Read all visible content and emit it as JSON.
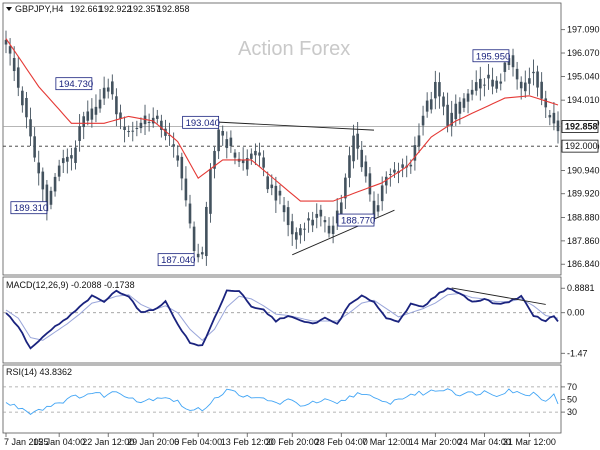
{
  "chart_data": [
    {
      "type": "candlestick",
      "panel": "price",
      "title": "GBPJPY,H4",
      "ohlc_header": [
        "192.661",
        "192.922",
        "192.357",
        "192.858"
      ],
      "watermark": "Action Forex",
      "ylim": [
        186.5,
        197.6
      ],
      "y_ticks": [
        "197.090",
        "196.070",
        "195.040",
        "194.010",
        "192.980",
        "191.960",
        "190.940",
        "189.920",
        "188.880",
        "187.860",
        "186.840"
      ],
      "current_price": {
        "value": 192.858,
        "label": "192.858"
      },
      "support_level": {
        "value": 192.0,
        "label": "192.000"
      },
      "annotations": [
        {
          "text": "194.730",
          "x": 21,
          "y": 194.73,
          "anchor": "left"
        },
        {
          "text": "189.310",
          "x": 10,
          "y": 189.31,
          "anchor": "right"
        },
        {
          "text": "193.040",
          "x": 52,
          "y": 193.04,
          "anchor": "right"
        },
        {
          "text": "187.040",
          "x": 46,
          "y": 187.04,
          "anchor": "right"
        },
        {
          "text": "188.770",
          "x": 90,
          "y": 188.77,
          "anchor": "right"
        },
        {
          "text": "195.950",
          "x": 123,
          "y": 195.95,
          "anchor": "right"
        }
      ],
      "trendlines": [
        {
          "x": [
            52,
            90
          ],
          "y": [
            193.05,
            192.7
          ]
        },
        {
          "x": [
            70,
            95
          ],
          "y": [
            187.25,
            189.2
          ]
        }
      ],
      "anchors": [
        {
          "x": 0,
          "y": 196.6
        },
        {
          "x": 4,
          "y": 193.9
        },
        {
          "x": 7,
          "y": 191.5
        },
        {
          "x": 10,
          "y": 189.4
        },
        {
          "x": 13,
          "y": 191.2
        },
        {
          "x": 16,
          "y": 191.5
        },
        {
          "x": 19,
          "y": 193.2
        },
        {
          "x": 22,
          "y": 193.6
        },
        {
          "x": 25,
          "y": 194.7
        },
        {
          "x": 28,
          "y": 193.0
        },
        {
          "x": 31,
          "y": 192.6
        },
        {
          "x": 34,
          "y": 193.3
        },
        {
          "x": 37,
          "y": 193.1
        },
        {
          "x": 40,
          "y": 192.3
        },
        {
          "x": 43,
          "y": 190.8
        },
        {
          "x": 46,
          "y": 187.3
        },
        {
          "x": 48,
          "y": 187.4
        },
        {
          "x": 50,
          "y": 190.8
        },
        {
          "x": 52,
          "y": 192.8
        },
        {
          "x": 55,
          "y": 191.8
        },
        {
          "x": 58,
          "y": 191.2
        },
        {
          "x": 61,
          "y": 191.9
        },
        {
          "x": 64,
          "y": 190.3
        },
        {
          "x": 67,
          "y": 189.6
        },
        {
          "x": 70,
          "y": 188.1
        },
        {
          "x": 73,
          "y": 188.6
        },
        {
          "x": 76,
          "y": 189.0
        },
        {
          "x": 79,
          "y": 188.3
        },
        {
          "x": 82,
          "y": 189.6
        },
        {
          "x": 85,
          "y": 192.4
        },
        {
          "x": 88,
          "y": 190.7
        },
        {
          "x": 90,
          "y": 189.0
        },
        {
          "x": 93,
          "y": 190.6
        },
        {
          "x": 96,
          "y": 190.9
        },
        {
          "x": 99,
          "y": 191.3
        },
        {
          "x": 102,
          "y": 193.4
        },
        {
          "x": 105,
          "y": 194.6
        },
        {
          "x": 108,
          "y": 193.1
        },
        {
          "x": 111,
          "y": 193.9
        },
        {
          "x": 114,
          "y": 194.4
        },
        {
          "x": 117,
          "y": 194.9
        },
        {
          "x": 120,
          "y": 194.6
        },
        {
          "x": 123,
          "y": 195.8
        },
        {
          "x": 126,
          "y": 194.4
        },
        {
          "x": 129,
          "y": 195.4
        },
        {
          "x": 132,
          "y": 193.5
        },
        {
          "x": 135,
          "y": 192.9
        }
      ],
      "ma_anchors": [
        {
          "x": 0,
          "y": 196.7
        },
        {
          "x": 8,
          "y": 194.6
        },
        {
          "x": 16,
          "y": 193.0
        },
        {
          "x": 24,
          "y": 193.0
        },
        {
          "x": 30,
          "y": 193.3
        },
        {
          "x": 36,
          "y": 193.1
        },
        {
          "x": 42,
          "y": 192.2
        },
        {
          "x": 47,
          "y": 190.6
        },
        {
          "x": 53,
          "y": 191.4
        },
        {
          "x": 60,
          "y": 191.4
        },
        {
          "x": 66,
          "y": 190.5
        },
        {
          "x": 72,
          "y": 189.6
        },
        {
          "x": 80,
          "y": 189.6
        },
        {
          "x": 86,
          "y": 190.0
        },
        {
          "x": 92,
          "y": 190.4
        },
        {
          "x": 98,
          "y": 191.1
        },
        {
          "x": 104,
          "y": 192.4
        },
        {
          "x": 110,
          "y": 193.1
        },
        {
          "x": 116,
          "y": 193.6
        },
        {
          "x": 122,
          "y": 194.1
        },
        {
          "x": 128,
          "y": 194.2
        },
        {
          "x": 135,
          "y": 193.8
        }
      ]
    },
    {
      "type": "line",
      "panel": "macd",
      "title": "MACD(12,26,9) -0.2088 -0.1738",
      "ylim": [
        -1.75,
        1.15
      ],
      "y_ticks": [
        "0.8881",
        "0.00",
        "-1.47"
      ],
      "zero_line": 0,
      "trendline": {
        "x": [
          109,
          132
        ],
        "y": [
          0.9,
          0.3
        ]
      },
      "series": [
        {
          "role": "main",
          "anchors": [
            {
              "x": 0,
              "y": 0.0
            },
            {
              "x": 3,
              "y": -0.5
            },
            {
              "x": 6,
              "y": -1.3
            },
            {
              "x": 9,
              "y": -0.9
            },
            {
              "x": 12,
              "y": -0.5
            },
            {
              "x": 15,
              "y": -0.2
            },
            {
              "x": 18,
              "y": 0.2
            },
            {
              "x": 21,
              "y": 0.6
            },
            {
              "x": 24,
              "y": 0.4
            },
            {
              "x": 27,
              "y": 0.8
            },
            {
              "x": 30,
              "y": 0.6
            },
            {
              "x": 33,
              "y": 0.0
            },
            {
              "x": 36,
              "y": 0.1
            },
            {
              "x": 39,
              "y": 0.4
            },
            {
              "x": 42,
              "y": -0.4
            },
            {
              "x": 45,
              "y": -1.1
            },
            {
              "x": 48,
              "y": -1.2
            },
            {
              "x": 51,
              "y": -0.2
            },
            {
              "x": 54,
              "y": 0.8
            },
            {
              "x": 57,
              "y": 0.8
            },
            {
              "x": 60,
              "y": 0.2
            },
            {
              "x": 63,
              "y": 0.1
            },
            {
              "x": 66,
              "y": -0.3
            },
            {
              "x": 69,
              "y": -0.1
            },
            {
              "x": 72,
              "y": -0.3
            },
            {
              "x": 75,
              "y": -0.4
            },
            {
              "x": 78,
              "y": -0.2
            },
            {
              "x": 81,
              "y": -0.4
            },
            {
              "x": 84,
              "y": 0.3
            },
            {
              "x": 87,
              "y": 0.6
            },
            {
              "x": 90,
              "y": 0.4
            },
            {
              "x": 93,
              "y": -0.2
            },
            {
              "x": 96,
              "y": -0.3
            },
            {
              "x": 99,
              "y": 0.3
            },
            {
              "x": 102,
              "y": 0.2
            },
            {
              "x": 105,
              "y": 0.6
            },
            {
              "x": 108,
              "y": 0.9
            },
            {
              "x": 111,
              "y": 0.7
            },
            {
              "x": 114,
              "y": 0.4
            },
            {
              "x": 117,
              "y": 0.5
            },
            {
              "x": 120,
              "y": 0.3
            },
            {
              "x": 123,
              "y": 0.4
            },
            {
              "x": 126,
              "y": 0.6
            },
            {
              "x": 129,
              "y": -0.1
            },
            {
              "x": 132,
              "y": -0.3
            },
            {
              "x": 134,
              "y": -0.1
            },
            {
              "x": 135,
              "y": -0.3
            }
          ]
        },
        {
          "role": "signal",
          "anchors": [
            {
              "x": 0,
              "y": 0.1
            },
            {
              "x": 3,
              "y": -0.2
            },
            {
              "x": 6,
              "y": -0.9
            },
            {
              "x": 9,
              "y": -1.0
            },
            {
              "x": 12,
              "y": -0.7
            },
            {
              "x": 15,
              "y": -0.4
            },
            {
              "x": 18,
              "y": -0.05
            },
            {
              "x": 21,
              "y": 0.35
            },
            {
              "x": 24,
              "y": 0.45
            },
            {
              "x": 27,
              "y": 0.6
            },
            {
              "x": 30,
              "y": 0.65
            },
            {
              "x": 33,
              "y": 0.3
            },
            {
              "x": 36,
              "y": 0.1
            },
            {
              "x": 39,
              "y": 0.25
            },
            {
              "x": 42,
              "y": 0.0
            },
            {
              "x": 45,
              "y": -0.6
            },
            {
              "x": 48,
              "y": -1.0
            },
            {
              "x": 51,
              "y": -0.6
            },
            {
              "x": 54,
              "y": 0.2
            },
            {
              "x": 57,
              "y": 0.6
            },
            {
              "x": 60,
              "y": 0.5
            },
            {
              "x": 63,
              "y": 0.25
            },
            {
              "x": 66,
              "y": -0.05
            },
            {
              "x": 69,
              "y": -0.1
            },
            {
              "x": 72,
              "y": -0.2
            },
            {
              "x": 75,
              "y": -0.3
            },
            {
              "x": 78,
              "y": -0.3
            },
            {
              "x": 81,
              "y": -0.3
            },
            {
              "x": 84,
              "y": 0.0
            },
            {
              "x": 87,
              "y": 0.35
            },
            {
              "x": 90,
              "y": 0.45
            },
            {
              "x": 93,
              "y": 0.15
            },
            {
              "x": 96,
              "y": -0.15
            },
            {
              "x": 99,
              "y": 0.0
            },
            {
              "x": 102,
              "y": 0.15
            },
            {
              "x": 105,
              "y": 0.35
            },
            {
              "x": 108,
              "y": 0.65
            },
            {
              "x": 111,
              "y": 0.7
            },
            {
              "x": 114,
              "y": 0.55
            },
            {
              "x": 117,
              "y": 0.5
            },
            {
              "x": 120,
              "y": 0.4
            },
            {
              "x": 123,
              "y": 0.4
            },
            {
              "x": 126,
              "y": 0.5
            },
            {
              "x": 129,
              "y": 0.25
            },
            {
              "x": 132,
              "y": -0.1
            },
            {
              "x": 135,
              "y": -0.2
            }
          ]
        }
      ]
    },
    {
      "type": "line",
      "panel": "rsi",
      "title": "RSI(14) 43.8362",
      "ylim": [
        0,
        100
      ],
      "y_ticks": [
        "70",
        "50",
        "30"
      ],
      "levels": [
        70,
        30
      ],
      "anchors": [
        {
          "x": 0,
          "y": 44
        },
        {
          "x": 3,
          "y": 38
        },
        {
          "x": 6,
          "y": 30
        },
        {
          "x": 9,
          "y": 36
        },
        {
          "x": 12,
          "y": 44
        },
        {
          "x": 15,
          "y": 50
        },
        {
          "x": 18,
          "y": 56
        },
        {
          "x": 21,
          "y": 60
        },
        {
          "x": 24,
          "y": 57
        },
        {
          "x": 27,
          "y": 62
        },
        {
          "x": 30,
          "y": 56
        },
        {
          "x": 33,
          "y": 46
        },
        {
          "x": 36,
          "y": 52
        },
        {
          "x": 39,
          "y": 55
        },
        {
          "x": 42,
          "y": 46
        },
        {
          "x": 45,
          "y": 32
        },
        {
          "x": 48,
          "y": 34
        },
        {
          "x": 51,
          "y": 52
        },
        {
          "x": 54,
          "y": 64
        },
        {
          "x": 57,
          "y": 60
        },
        {
          "x": 60,
          "y": 50
        },
        {
          "x": 63,
          "y": 52
        },
        {
          "x": 66,
          "y": 44
        },
        {
          "x": 69,
          "y": 48
        },
        {
          "x": 72,
          "y": 42
        },
        {
          "x": 75,
          "y": 44
        },
        {
          "x": 78,
          "y": 48
        },
        {
          "x": 81,
          "y": 42
        },
        {
          "x": 84,
          "y": 54
        },
        {
          "x": 87,
          "y": 62
        },
        {
          "x": 90,
          "y": 50
        },
        {
          "x": 93,
          "y": 44
        },
        {
          "x": 96,
          "y": 50
        },
        {
          "x": 99,
          "y": 58
        },
        {
          "x": 102,
          "y": 60
        },
        {
          "x": 105,
          "y": 64
        },
        {
          "x": 108,
          "y": 68
        },
        {
          "x": 111,
          "y": 58
        },
        {
          "x": 114,
          "y": 60
        },
        {
          "x": 117,
          "y": 62
        },
        {
          "x": 120,
          "y": 58
        },
        {
          "x": 123,
          "y": 66
        },
        {
          "x": 126,
          "y": 58
        },
        {
          "x": 129,
          "y": 60
        },
        {
          "x": 132,
          "y": 50
        },
        {
          "x": 134,
          "y": 56
        },
        {
          "x": 135,
          "y": 44
        }
      ]
    }
  ],
  "x_axis": {
    "bar_count": 136,
    "labels": [
      {
        "text": "7 Jan 2025",
        "x": 0
      },
      {
        "text": "15 Jan 04:00",
        "x": 13
      },
      {
        "text": "22 Jan 12:00",
        "x": 25
      },
      {
        "text": "29 Jan 20:00",
        "x": 36
      },
      {
        "text": "6 Feb 04:00",
        "x": 47
      },
      {
        "text": "13 Feb 12:00",
        "x": 59
      },
      {
        "text": "20 Feb 20:00",
        "x": 70
      },
      {
        "text": "28 Feb 04:00",
        "x": 82
      },
      {
        "text": "7 Mar 12:00",
        "x": 93
      },
      {
        "text": "14 Mar 20:00",
        "x": 105
      },
      {
        "text": "24 Mar 04:00",
        "x": 117
      },
      {
        "text": "31 Mar 12:00",
        "x": 128
      }
    ]
  },
  "colors": {
    "candles": "#43525e",
    "ma": "#e53935",
    "macd_main": "#1a237e",
    "macd_signal": "#9aa6da",
    "rsi": "#42a5f5",
    "trendline": "#222222",
    "annotation_border": "#1a237e",
    "frame": "#555555"
  }
}
